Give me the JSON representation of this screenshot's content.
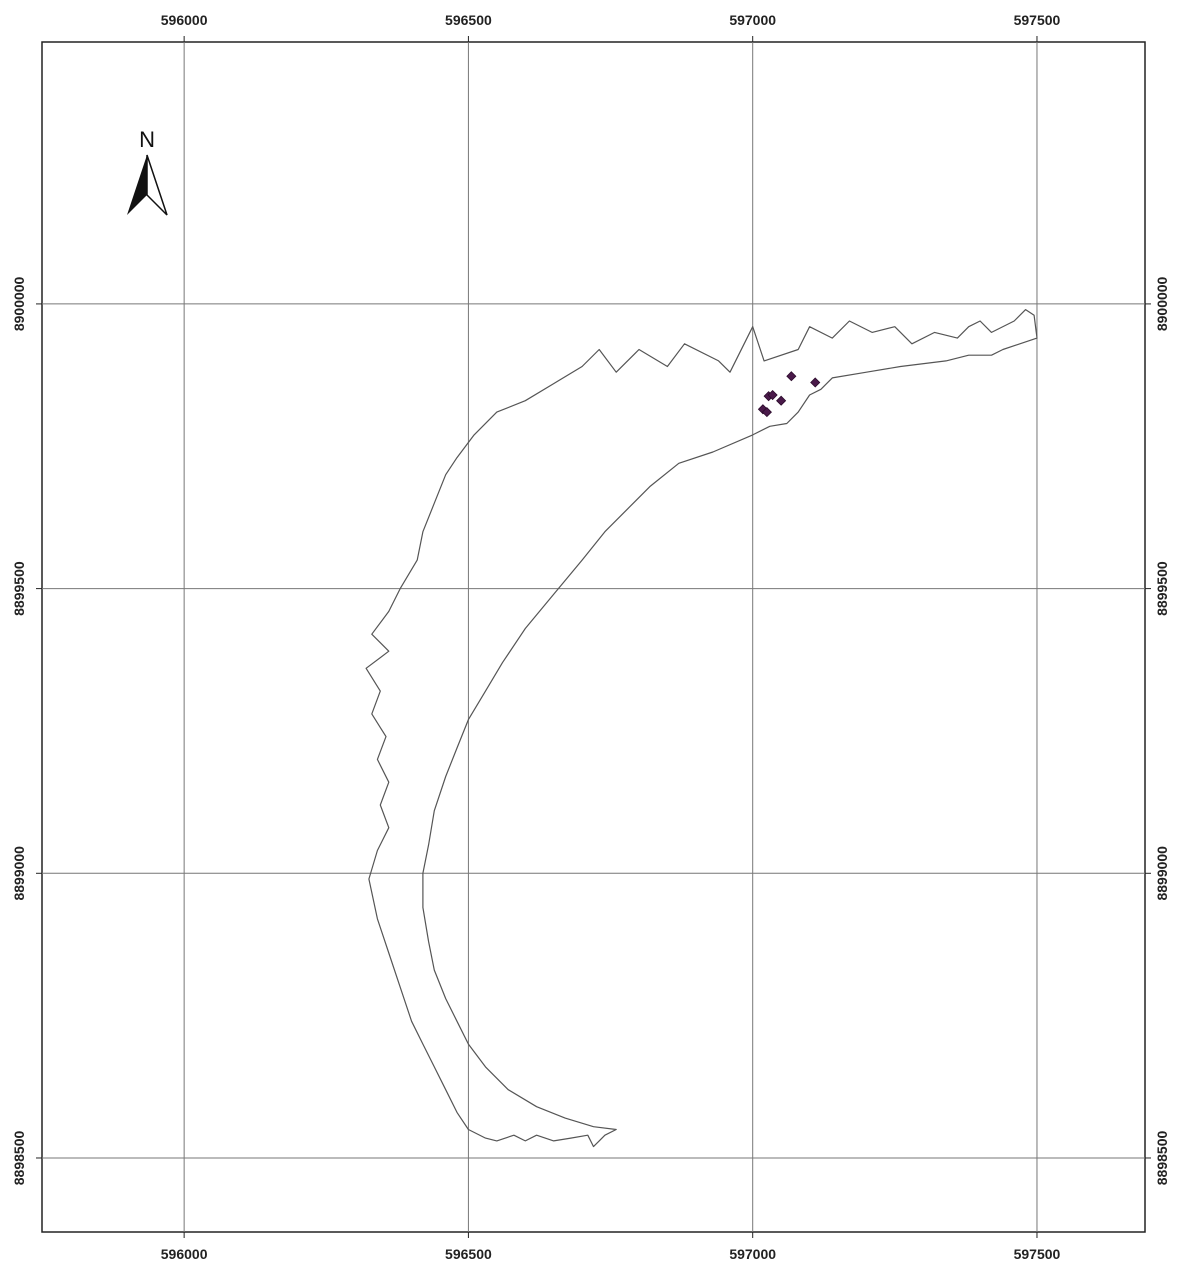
{
  "map": {
    "x_ticks": [
      596000,
      596500,
      597000,
      597500
    ],
    "y_ticks": [
      8898500,
      8899000,
      8899500,
      8900000
    ],
    "x_tick_labels": [
      "596000",
      "596500",
      "597000",
      "597500"
    ],
    "y_tick_labels": [
      "8898500",
      "8899000",
      "8899500",
      "8900000"
    ],
    "x_range": [
      595750,
      597690
    ],
    "y_range": [
      8898370,
      8900460
    ],
    "north_arrow": {
      "label": "N",
      "icon": "north-arrow-icon"
    },
    "colors": {
      "boundary": "#555555",
      "grid": "#777777",
      "points": "#4a1a4a",
      "frame": "#222222"
    },
    "outer_boundary": [
      [
        597000,
        8899960
      ],
      [
        597020,
        8899900
      ],
      [
        597080,
        8899920
      ],
      [
        597100,
        8899960
      ],
      [
        597140,
        8899940
      ],
      [
        597170,
        8899970
      ],
      [
        597210,
        8899950
      ],
      [
        597250,
        8899960
      ],
      [
        597280,
        8899930
      ],
      [
        597320,
        8899950
      ],
      [
        597360,
        8899940
      ],
      [
        597380,
        8899960
      ],
      [
        597400,
        8899970
      ],
      [
        597420,
        8899950
      ],
      [
        597460,
        8899970
      ],
      [
        597480,
        8899990
      ],
      [
        597495,
        8899980
      ],
      [
        597500,
        8899940
      ],
      [
        597440,
        8899920
      ],
      [
        597420,
        8899910
      ],
      [
        597380,
        8899910
      ],
      [
        597340,
        8899900
      ],
      [
        597260,
        8899890
      ],
      [
        597200,
        8899880
      ],
      [
        597140,
        8899870
      ],
      [
        597120,
        8899850
      ],
      [
        597100,
        8899840
      ],
      [
        597080,
        8899810
      ],
      [
        597060,
        8899790
      ],
      [
        597030,
        8899785
      ],
      [
        597000,
        8899770
      ],
      [
        596930,
        8899740
      ],
      [
        596870,
        8899720
      ],
      [
        596820,
        8899680
      ],
      [
        596780,
        8899640
      ],
      [
        596740,
        8899600
      ],
      [
        596700,
        8899550
      ],
      [
        596650,
        8899490
      ],
      [
        596600,
        8899430
      ],
      [
        596560,
        8899370
      ],
      [
        596530,
        8899320
      ],
      [
        596500,
        8899270
      ],
      [
        596480,
        8899220
      ],
      [
        596460,
        8899170
      ],
      [
        596440,
        8899110
      ],
      [
        596430,
        8899050
      ],
      [
        596420,
        8899000
      ],
      [
        596420,
        8898940
      ],
      [
        596430,
        8898880
      ],
      [
        596440,
        8898830
      ],
      [
        596460,
        8898780
      ],
      [
        596480,
        8898740
      ],
      [
        596500,
        8898700
      ],
      [
        596530,
        8898660
      ],
      [
        596570,
        8898620
      ],
      [
        596620,
        8898590
      ],
      [
        596670,
        8898570
      ],
      [
        596720,
        8898555
      ],
      [
        596760,
        8898550
      ],
      [
        596740,
        8898540
      ],
      [
        596730,
        8898530
      ],
      [
        596720,
        8898520
      ],
      [
        596710,
        8898540
      ],
      [
        596680,
        8898535
      ],
      [
        596650,
        8898530
      ],
      [
        596620,
        8898540
      ],
      [
        596600,
        8898530
      ],
      [
        596580,
        8898540
      ],
      [
        596550,
        8898530
      ],
      [
        596530,
        8898535
      ],
      [
        596500,
        8898550
      ],
      [
        596480,
        8898580
      ],
      [
        596460,
        8898620
      ],
      [
        596440,
        8898660
      ],
      [
        596420,
        8898700
      ],
      [
        596400,
        8898740
      ],
      [
        596380,
        8898800
      ],
      [
        596360,
        8898860
      ],
      [
        596340,
        8898920
      ],
      [
        596325,
        8898990
      ],
      [
        596340,
        8899040
      ],
      [
        596360,
        8899080
      ],
      [
        596345,
        8899120
      ],
      [
        596360,
        8899160
      ],
      [
        596340,
        8899200
      ],
      [
        596355,
        8899240
      ],
      [
        596330,
        8899280
      ],
      [
        596345,
        8899320
      ],
      [
        596320,
        8899360
      ],
      [
        596360,
        8899390
      ],
      [
        596330,
        8899420
      ],
      [
        596360,
        8899460
      ],
      [
        596380,
        8899500
      ],
      [
        596410,
        8899550
      ],
      [
        596420,
        8899600
      ],
      [
        596440,
        8899650
      ],
      [
        596460,
        8899700
      ],
      [
        596480,
        8899730
      ],
      [
        596510,
        8899770
      ],
      [
        596550,
        8899810
      ],
      [
        596600,
        8899830
      ],
      [
        596650,
        8899860
      ],
      [
        596700,
        8899890
      ],
      [
        596730,
        8899920
      ],
      [
        596760,
        8899880
      ],
      [
        596800,
        8899920
      ],
      [
        596850,
        8899890
      ],
      [
        596880,
        8899930
      ],
      [
        596940,
        8899900
      ],
      [
        596960,
        8899880
      ],
      [
        597000,
        8899960
      ]
    ],
    "points": [
      [
        597018,
        8899815
      ],
      [
        597025,
        8899810
      ],
      [
        597028,
        8899838
      ],
      [
        597035,
        8899840
      ],
      [
        597050,
        8899830
      ],
      [
        597068,
        8899873
      ],
      [
        597110,
        8899862
      ]
    ]
  }
}
